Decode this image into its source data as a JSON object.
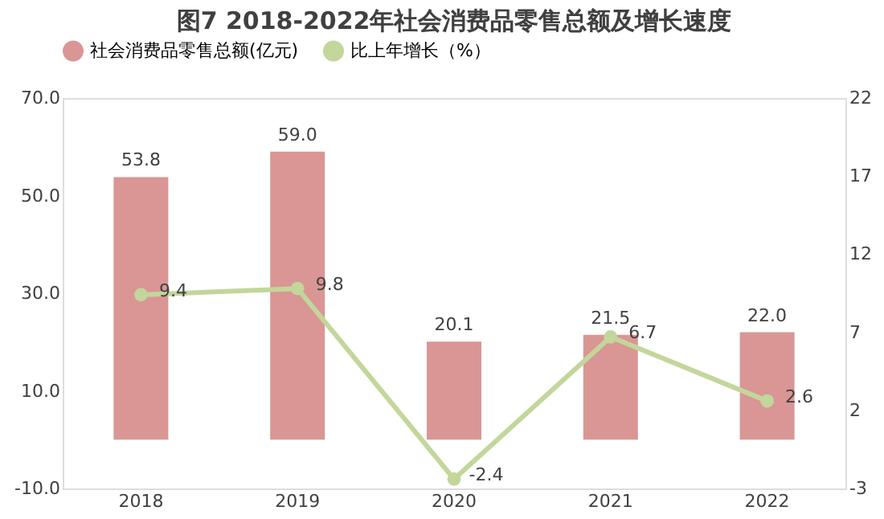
{
  "chart_data": {
    "type": "bar",
    "title": "图7 2018-2022年社会消费品零售总额及增长速度",
    "categories": [
      "2018",
      "2019",
      "2020",
      "2021",
      "2022"
    ],
    "series": [
      {
        "name": "社会消费品零售总额(亿元)",
        "color": "#d99694",
        "values": [
          53.8,
          59.0,
          20.1,
          21.5,
          22.0
        ],
        "value_labels": [
          "53.8",
          "59.0",
          "20.1",
          "21.5",
          "22.0"
        ]
      },
      {
        "name": "比上年增长（%）",
        "type": "line",
        "axis": "y2",
        "color": "#c3d69b",
        "marker": "circle",
        "values": [
          9.4,
          9.8,
          -2.4,
          6.7,
          2.6
        ]
      }
    ],
    "ylim": [
      -10,
      70
    ],
    "yticks": [
      {
        "value": -10,
        "label": "-10.0"
      },
      {
        "value": 10,
        "label": "10.0"
      },
      {
        "value": 30,
        "label": "30.0"
      },
      {
        "value": 50,
        "label": "50.0"
      },
      {
        "value": 70,
        "label": "70.0"
      }
    ],
    "y2lim": [
      -3,
      22
    ],
    "y2ticks": [
      -3,
      2,
      7,
      12,
      17,
      22
    ],
    "data_labels": true,
    "grid": false,
    "legend": "top left"
  }
}
